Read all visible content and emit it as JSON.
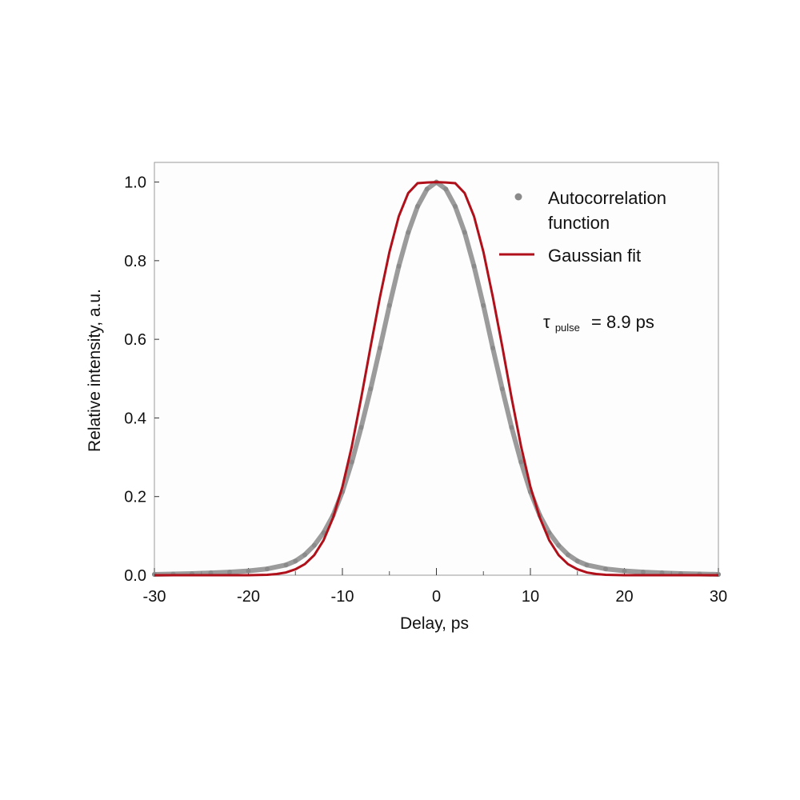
{
  "chart_data": {
    "type": "line",
    "xlabel": "Delay, ps",
    "ylabel": "Relative intensity, a.u.",
    "xlim": [
      -30,
      30
    ],
    "ylim": [
      0,
      1.05
    ],
    "xticks": [
      -30,
      -20,
      -10,
      0,
      10,
      20,
      30
    ],
    "xtick_labels": [
      "-30",
      "-20",
      "-10",
      "0",
      "10",
      "20",
      "30"
    ],
    "yticks": [
      0,
      0.2,
      0.4,
      0.6,
      0.8,
      1.0
    ],
    "ytick_labels": [
      "0.0",
      "0.2",
      "0.4",
      "0.6",
      "0.8",
      "1.0"
    ],
    "grid": false,
    "legend_position": "top-right",
    "series": [
      {
        "name": "Autocorrelation function",
        "style": "markers",
        "color": "#8a8a8a",
        "x": [
          -30,
          -28,
          -26,
          -24,
          -22,
          -20,
          -18,
          -16,
          -15,
          -14,
          -13,
          -12,
          -11,
          -10,
          -9,
          -8,
          -7,
          -6,
          -5,
          -4,
          -3,
          -2,
          -1,
          0,
          1,
          2,
          3,
          4,
          5,
          6,
          7,
          8,
          9,
          10,
          11,
          12,
          13,
          14,
          15,
          16,
          18,
          20,
          22,
          24,
          26,
          28,
          30
        ],
        "y": [
          0.002,
          0.003,
          0.004,
          0.006,
          0.008,
          0.011,
          0.016,
          0.026,
          0.036,
          0.052,
          0.076,
          0.108,
          0.152,
          0.212,
          0.288,
          0.376,
          0.474,
          0.578,
          0.686,
          0.786,
          0.872,
          0.938,
          0.982,
          1.0,
          0.982,
          0.938,
          0.872,
          0.786,
          0.686,
          0.578,
          0.474,
          0.376,
          0.288,
          0.212,
          0.152,
          0.108,
          0.076,
          0.052,
          0.036,
          0.026,
          0.016,
          0.011,
          0.008,
          0.006,
          0.004,
          0.003,
          0.002
        ]
      },
      {
        "name": "Gaussian fit",
        "style": "line",
        "color": "#b0101a",
        "x": [
          -30,
          -28,
          -26,
          -24,
          -22,
          -20,
          -18,
          -17,
          -16,
          -15,
          -14,
          -13,
          -12,
          -11,
          -10,
          -9,
          -8,
          -7,
          -6,
          -5,
          -4,
          -3,
          -2,
          -1,
          0,
          1,
          2,
          3,
          4,
          5,
          6,
          7,
          8,
          9,
          10,
          11,
          12,
          13,
          14,
          15,
          16,
          17,
          18,
          20,
          22,
          24,
          26,
          28,
          30
        ],
        "y": [
          0,
          0,
          0,
          0,
          0,
          0.0001,
          0.001,
          0.003,
          0.007,
          0.015,
          0.028,
          0.051,
          0.089,
          0.146,
          0.225,
          0.328,
          0.451,
          0.582,
          0.708,
          0.822,
          0.913,
          0.972,
          0.997,
          0.999,
          1.0,
          0.999,
          0.997,
          0.972,
          0.913,
          0.822,
          0.708,
          0.582,
          0.451,
          0.328,
          0.225,
          0.146,
          0.089,
          0.051,
          0.028,
          0.015,
          0.007,
          0.003,
          0.001,
          0.0001,
          0,
          0,
          0,
          0,
          0
        ]
      }
    ],
    "legend": {
      "marker_label_line1": "Autocorrelation",
      "marker_label_line2": "function",
      "line_label": "Gaussian fit"
    },
    "annotation": {
      "symbol": "τ",
      "subscript": "pulse",
      "text": "= 8.9 ps"
    }
  }
}
